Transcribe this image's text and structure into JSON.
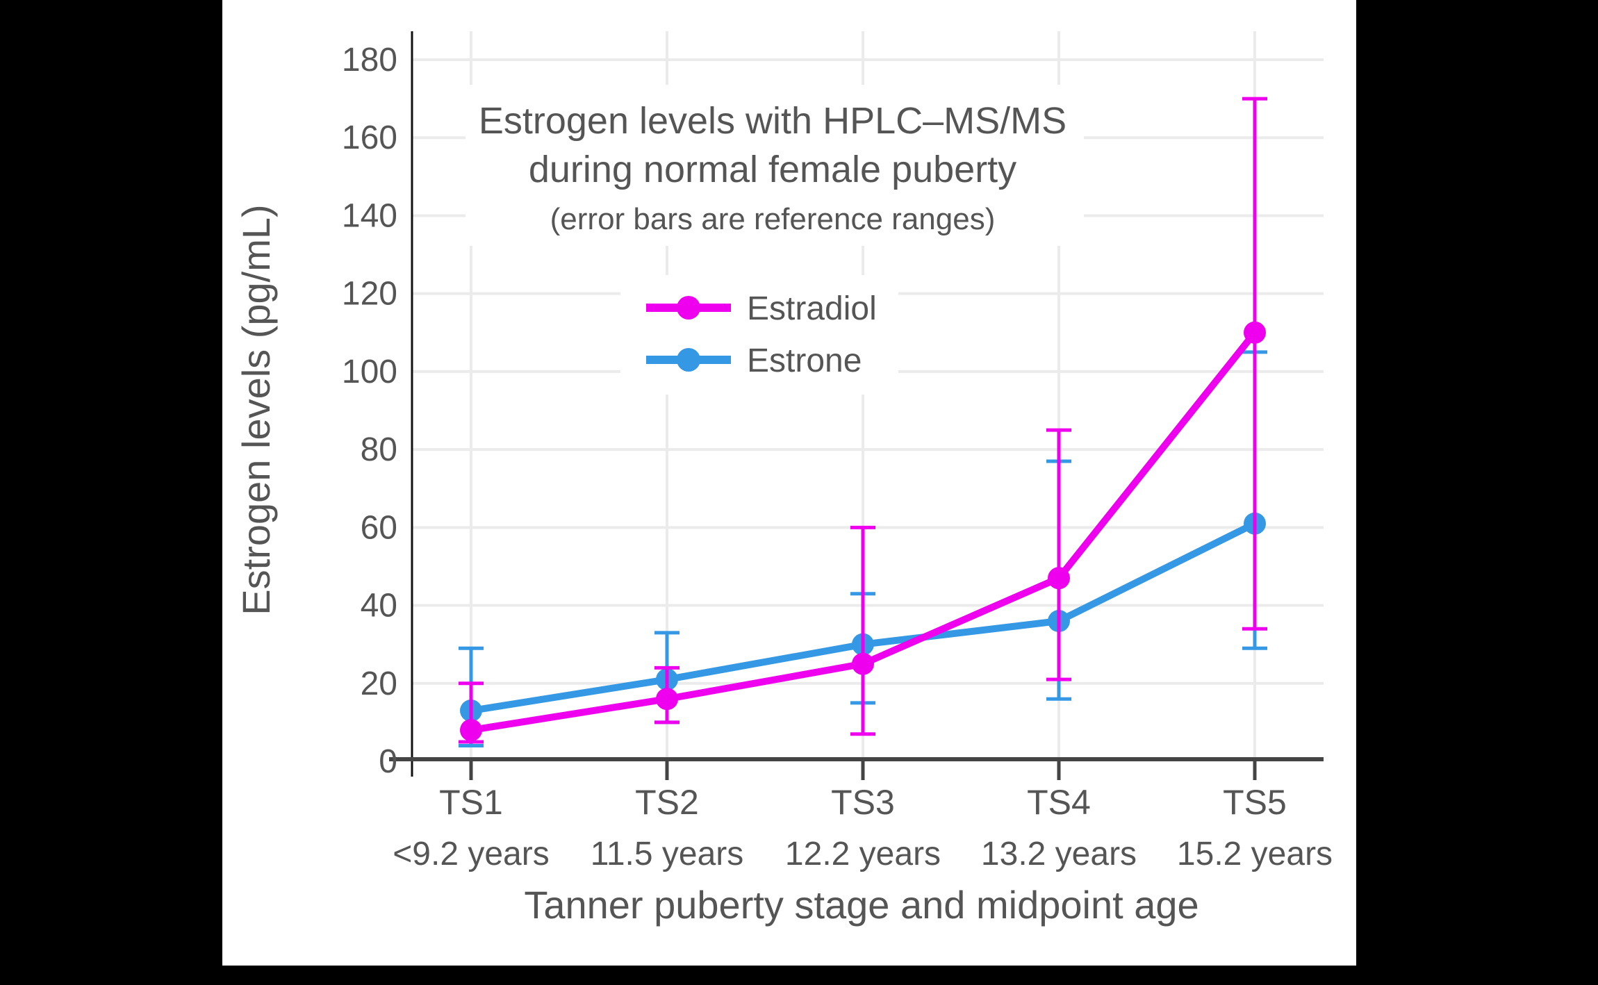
{
  "figure": {
    "title_line1": "Estrogen levels with HPLC–MS/MS",
    "title_line2": "during normal female puberty",
    "subtitle": "(error bars are reference ranges)",
    "x_axis_title": "Tanner puberty stage and midpoint age",
    "y_axis_title": "Estrogen levels (pg/mL)"
  },
  "colors": {
    "estradiol": "#EE00EE",
    "estrone": "#3498E5",
    "gridline": "#EBEBEB",
    "y_axis_line": "#111111",
    "x_axis_line": "#444444",
    "text": "#555555",
    "panel_background": "#FFFFFF",
    "outer_background": "#000000"
  },
  "chart_data": {
    "type": "line",
    "title": "Estrogen levels with HPLC–MS/MS during normal female puberty",
    "subtitle": "(error bars are reference ranges)",
    "xlabel": "Tanner puberty stage and midpoint age",
    "ylabel": "Estrogen levels (pg/mL)",
    "categories": [
      "TS1",
      "TS2",
      "TS3",
      "TS4",
      "TS5"
    ],
    "category_sublabels": [
      "<9.2 years",
      "11.5 years",
      "12.2 years",
      "13.2 years",
      "15.2 years"
    ],
    "yticks": [
      0,
      20,
      40,
      60,
      80,
      100,
      120,
      140,
      160,
      180
    ],
    "ylim": [
      0,
      187
    ],
    "grid": true,
    "legend_position": "inside upper center",
    "error_bars": "reference ranges",
    "series": [
      {
        "name": "Estradiol",
        "color": "#EE00EE",
        "values": [
          8,
          16,
          25,
          47,
          110
        ],
        "error_low": [
          5,
          10,
          7,
          21,
          34
        ],
        "error_high": [
          20,
          24,
          60,
          85,
          170
        ]
      },
      {
        "name": "Estrone",
        "color": "#3498E5",
        "values": [
          13,
          21,
          30,
          36,
          61
        ],
        "error_low": [
          4,
          10,
          15,
          16,
          29
        ],
        "error_high": [
          29,
          33,
          43,
          77,
          105
        ]
      }
    ]
  }
}
